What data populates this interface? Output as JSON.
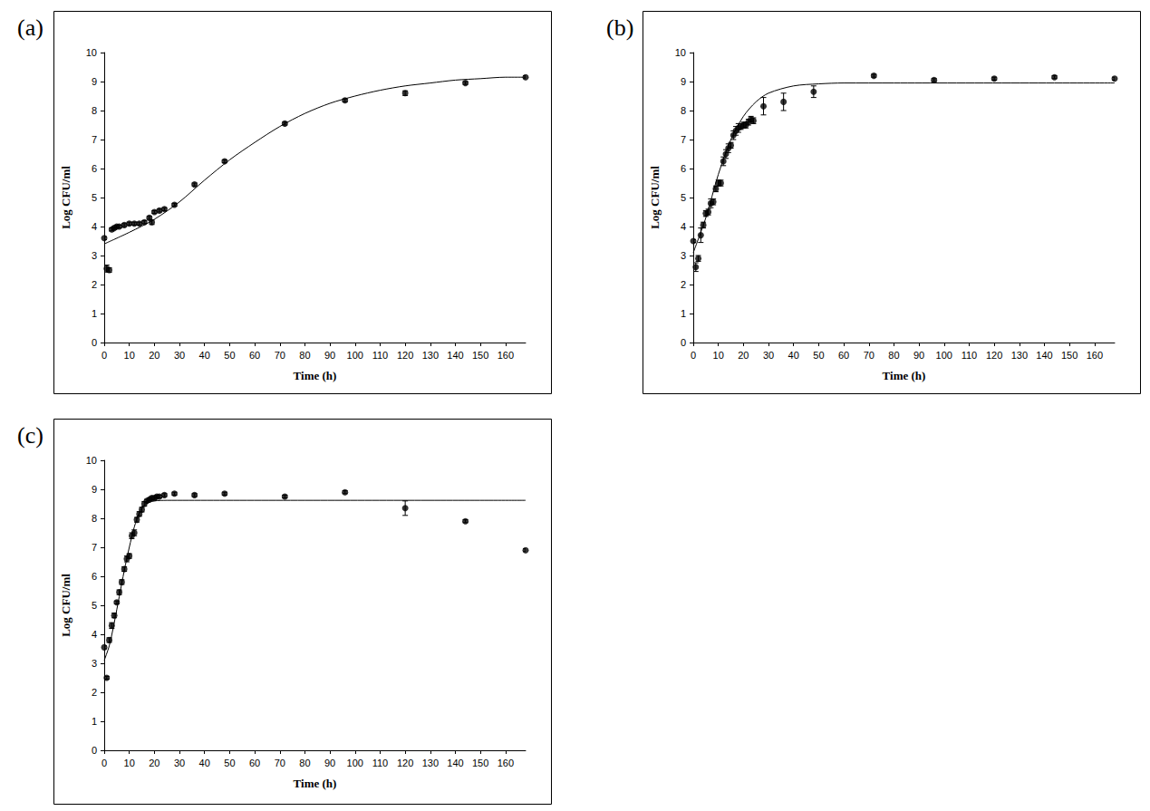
{
  "chart_data": [
    {
      "type": "scatter",
      "title": "(a)",
      "x_label": "Time (h)",
      "y_label": "Log CFU/ml",
      "xlim": [
        0,
        168
      ],
      "xticks": [
        0,
        10,
        20,
        30,
        40,
        50,
        60,
        70,
        80,
        90,
        100,
        110,
        120,
        130,
        140,
        150,
        160
      ],
      "ylim": [
        0,
        10
      ],
      "yticks": [
        0,
        1,
        2,
        3,
        4,
        5,
        6,
        7,
        8,
        9,
        10
      ],
      "grid": false,
      "series": [
        {
          "type": "line",
          "color": "#000000",
          "line_style": "solid",
          "x": [
            0,
            10,
            20,
            30,
            40,
            50,
            60,
            70,
            80,
            90,
            100,
            110,
            120,
            130,
            140,
            150,
            160,
            168
          ],
          "values": [
            3.4,
            3.8,
            4.25,
            4.85,
            5.6,
            6.3,
            6.9,
            7.45,
            7.9,
            8.25,
            8.5,
            8.7,
            8.85,
            8.95,
            9.05,
            9.1,
            9.15,
            9.15
          ]
        },
        {
          "type": "scatter",
          "color": "#000000",
          "marker": "circle",
          "x": [
            0,
            1,
            2,
            3,
            4,
            5,
            6,
            8,
            10,
            12,
            14,
            16,
            18,
            19,
            20,
            22,
            24,
            28,
            36,
            48,
            72,
            96,
            120,
            144,
            168
          ],
          "values": [
            3.6,
            2.55,
            2.5,
            3.9,
            3.95,
            4.0,
            4.0,
            4.05,
            4.1,
            4.1,
            4.1,
            4.15,
            4.3,
            4.15,
            4.5,
            4.55,
            4.6,
            4.75,
            5.45,
            6.25,
            7.55,
            8.35,
            8.6,
            8.95,
            9.15
          ],
          "errors": [
            0.05,
            0.12,
            0.08,
            0.05,
            0.05,
            0.05,
            0.05,
            0.05,
            0.05,
            0.05,
            0.05,
            0.05,
            0.05,
            0.08,
            0.05,
            0.05,
            0.05,
            0.05,
            0.05,
            0.05,
            0.05,
            0.05,
            0.08,
            0.05,
            0.05
          ]
        }
      ]
    },
    {
      "type": "scatter",
      "title": "(b)",
      "x_label": "Time (h)",
      "y_label": "Log CFU/ml",
      "xlim": [
        0,
        168
      ],
      "xticks": [
        0,
        10,
        20,
        30,
        40,
        50,
        60,
        70,
        80,
        90,
        100,
        110,
        120,
        130,
        140,
        150,
        160
      ],
      "ylim": [
        0,
        10
      ],
      "yticks": [
        0,
        1,
        2,
        3,
        4,
        5,
        6,
        7,
        8,
        9,
        10
      ],
      "grid": false,
      "series": [
        {
          "type": "line",
          "color": "#000000",
          "line_style": "solid",
          "x": [
            0,
            5,
            10,
            15,
            20,
            25,
            30,
            40,
            50,
            60,
            80,
            168
          ],
          "values": [
            3.1,
            4.3,
            5.8,
            7.0,
            7.8,
            8.3,
            8.6,
            8.85,
            8.92,
            8.95,
            8.95,
            8.95
          ]
        },
        {
          "type": "scatter",
          "color": "#000000",
          "marker": "circle",
          "x": [
            0,
            1,
            2,
            3,
            4,
            5,
            6,
            7,
            8,
            9,
            10,
            11,
            12,
            13,
            14,
            15,
            16,
            17,
            18,
            19,
            20,
            21,
            22,
            23,
            24,
            28,
            36,
            48,
            72,
            96,
            120,
            144,
            168
          ],
          "values": [
            3.5,
            2.6,
            2.9,
            3.7,
            4.05,
            4.45,
            4.5,
            4.8,
            4.85,
            5.3,
            5.5,
            5.5,
            6.25,
            6.5,
            6.7,
            6.8,
            7.15,
            7.3,
            7.4,
            7.45,
            7.5,
            7.5,
            7.6,
            7.7,
            7.65,
            8.15,
            8.3,
            8.65,
            9.2,
            9.05,
            9.1,
            9.15,
            9.1
          ],
          "errors": [
            0.05,
            0.15,
            0.1,
            0.25,
            0.1,
            0.1,
            0.1,
            0.15,
            0.1,
            0.1,
            0.1,
            0.1,
            0.15,
            0.15,
            0.15,
            0.1,
            0.15,
            0.15,
            0.15,
            0.1,
            0.1,
            0.1,
            0.1,
            0.1,
            0.1,
            0.3,
            0.3,
            0.2,
            0.05,
            0.05,
            0.05,
            0.05,
            0.05
          ]
        }
      ]
    },
    {
      "type": "scatter",
      "title": "(c)",
      "x_label": "Time (h)",
      "y_label": "Log CFU/ml",
      "xlim": [
        0,
        168
      ],
      "xticks": [
        0,
        10,
        20,
        30,
        40,
        50,
        60,
        70,
        80,
        90,
        100,
        110,
        120,
        130,
        140,
        150,
        160
      ],
      "ylim": [
        0,
        10
      ],
      "yticks": [
        0,
        1,
        2,
        3,
        4,
        5,
        6,
        7,
        8,
        9,
        10
      ],
      "grid": false,
      "series": [
        {
          "type": "line",
          "color": "#000000",
          "line_style": "solid",
          "x": [
            0,
            2,
            4,
            6,
            8,
            10,
            12,
            14,
            16,
            18,
            20,
            25,
            168
          ],
          "values": [
            3.1,
            3.6,
            4.4,
            5.3,
            6.2,
            7.0,
            7.7,
            8.2,
            8.45,
            8.55,
            8.6,
            8.62,
            8.62
          ]
        },
        {
          "type": "scatter",
          "color": "#000000",
          "marker": "circle",
          "x": [
            0,
            1,
            2,
            3,
            4,
            5,
            6,
            7,
            8,
            9,
            10,
            11,
            12,
            13,
            14,
            15,
            16,
            17,
            18,
            19,
            20,
            21,
            22,
            24,
            28,
            36,
            48,
            72,
            96,
            120,
            144,
            168
          ],
          "values": [
            3.55,
            2.5,
            3.8,
            4.3,
            4.65,
            5.1,
            5.45,
            5.8,
            6.25,
            6.6,
            6.7,
            7.4,
            7.5,
            7.95,
            8.15,
            8.3,
            8.5,
            8.6,
            8.65,
            8.7,
            8.7,
            8.75,
            8.75,
            8.8,
            8.85,
            8.8,
            8.85,
            8.75,
            8.9,
            8.35,
            7.9,
            6.9
          ],
          "errors": [
            0.05,
            0.05,
            0.08,
            0.1,
            0.08,
            0.05,
            0.08,
            0.08,
            0.08,
            0.1,
            0.08,
            0.1,
            0.1,
            0.08,
            0.08,
            0.08,
            0.08,
            0.05,
            0.05,
            0.05,
            0.05,
            0.05,
            0.05,
            0.05,
            0.05,
            0.05,
            0.05,
            0.05,
            0.05,
            0.25,
            0.05,
            0.05
          ]
        }
      ]
    }
  ]
}
